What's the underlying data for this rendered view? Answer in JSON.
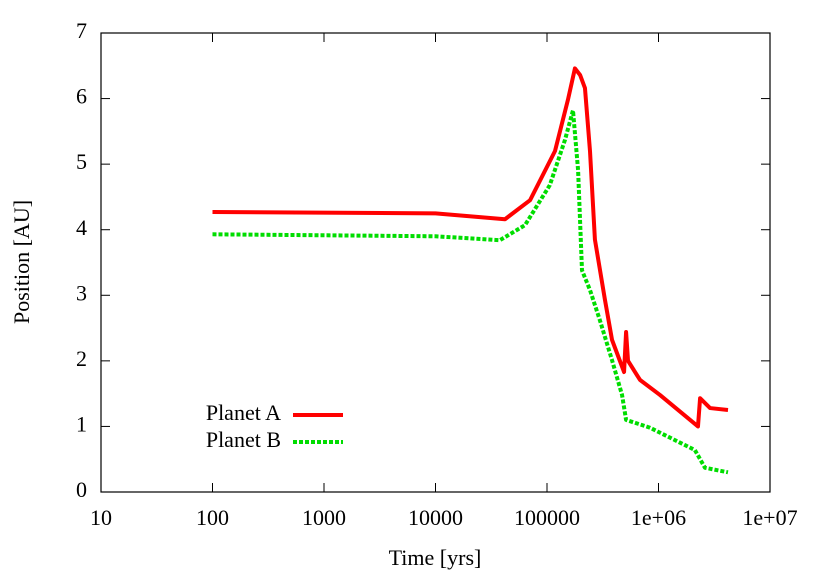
{
  "chart_data": {
    "type": "line",
    "x_label": "Time [yrs]",
    "y_label": "Position [AU]",
    "xscale": "log",
    "xlim": [
      10,
      10000000
    ],
    "ylim": [
      0,
      7
    ],
    "xticks": [
      10,
      100,
      1000,
      10000,
      100000,
      {
        "value": 1000000,
        "label": "1e+06"
      },
      {
        "value": 10000000,
        "label": "1e+07"
      }
    ],
    "yticks": [
      0,
      1,
      2,
      3,
      4,
      5,
      6,
      7
    ],
    "legend": "bottom-left",
    "series": [
      {
        "name": "Planet A",
        "color": "#ff0000",
        "dash": false,
        "x": [
          100,
          10000,
          42000,
          70500,
          118000,
          154000,
          178000,
          198000,
          219000,
          243000,
          269000,
          331000,
          383000,
          491000,
          512000,
          533000,
          682000,
          1030000,
          2260000,
          2360000,
          2900000,
          4200000
        ],
        "values": [
          4.27,
          4.25,
          4.16,
          4.45,
          5.2,
          5.98,
          6.46,
          6.36,
          6.16,
          5.2,
          3.85,
          2.93,
          2.32,
          1.83,
          2.44,
          2.0,
          1.71,
          1.48,
          1.0,
          1.43,
          1.28,
          1.25
        ]
      },
      {
        "name": "Planet B",
        "color": "#00dd00",
        "dash": true,
        "x": [
          100,
          10000,
          37800,
          63500,
          106000,
          145000,
          171000,
          190000,
          206000,
          243000,
          298000,
          383000,
          471000,
          512000,
          840000,
          2120000,
          2610000,
          4200000
        ],
        "values": [
          3.93,
          3.9,
          3.84,
          4.07,
          4.68,
          5.37,
          5.82,
          4.91,
          3.38,
          3.08,
          2.62,
          2.01,
          1.48,
          1.1,
          0.98,
          0.64,
          0.37,
          0.3
        ]
      }
    ]
  }
}
